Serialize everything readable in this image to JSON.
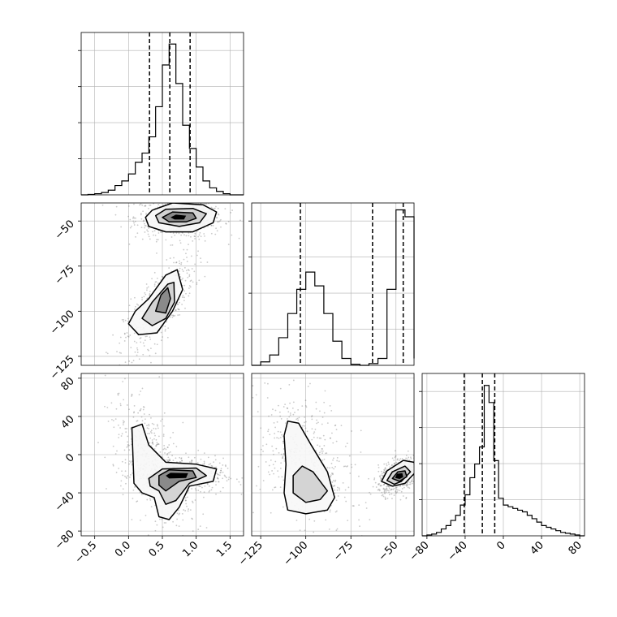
{
  "chart_data": {
    "type": "corner",
    "grid": true,
    "style": {
      "line_color": "#000000",
      "grid_color": "#b0b0b0",
      "point_color": "#666666",
      "fill_levels": [
        "#f7f7f7",
        "#d4d4d4",
        "#8a8a8a",
        "#000000"
      ]
    },
    "parameters": [
      {
        "range": [
          -0.7,
          1.7
        ],
        "ticks": [
          -0.5,
          0.0,
          0.5,
          1.0,
          1.5
        ],
        "tick_labels": [
          "−0.5",
          "0.0",
          "0.5",
          "1.0",
          "1.5"
        ]
      },
      {
        "range": [
          -130,
          -40
        ],
        "ticks": [
          -125,
          -100,
          -75,
          -50
        ],
        "tick_labels": [
          "−125",
          "−100",
          "−75",
          "−50"
        ]
      },
      {
        "range": [
          -85,
          85
        ],
        "ticks": [
          -80,
          -40,
          0,
          40,
          80
        ],
        "tick_labels": [
          "−80",
          "−40",
          "0",
          "40",
          "80"
        ]
      }
    ],
    "histograms": [
      {
        "edges": [
          -0.7,
          -0.6,
          -0.5,
          -0.4,
          -0.3,
          -0.2,
          -0.1,
          0.0,
          0.1,
          0.2,
          0.3,
          0.4,
          0.5,
          0.6,
          0.7,
          0.8,
          0.9,
          1.0,
          1.1,
          1.2,
          1.3,
          1.4,
          1.5,
          1.6,
          1.7
        ],
        "counts": [
          0,
          0.2,
          0.5,
          1,
          2,
          4,
          6,
          9,
          14,
          18,
          25,
          38,
          56,
          65,
          48,
          30,
          20,
          12,
          6,
          3,
          1.5,
          0.5,
          0,
          0
        ],
        "ymax": 70,
        "quantiles": [
          0.31,
          0.61,
          0.91
        ]
      },
      {
        "edges": [
          -130,
          -125,
          -120,
          -115,
          -110,
          -105,
          -100,
          -95,
          -90,
          -85,
          -80,
          -75,
          -70,
          -65,
          -60,
          -55,
          -50,
          -45,
          -40
        ],
        "counts": [
          0,
          1,
          3,
          8,
          15,
          22,
          27,
          23,
          15,
          7,
          2,
          0.3,
          0,
          0.5,
          2,
          22,
          45,
          43,
          2
        ],
        "ymax": 47,
        "quantiles": [
          -103,
          -63,
          -46
        ]
      },
      {
        "edges": [
          -85,
          -80,
          -75,
          -70,
          -65,
          -60,
          -55,
          -50,
          -45,
          -40,
          -35,
          -30,
          -25,
          -20,
          -15,
          -10,
          -5,
          0,
          5,
          10,
          15,
          20,
          25,
          30,
          35,
          40,
          45,
          50,
          55,
          60,
          65,
          70,
          75,
          80,
          85
        ],
        "counts": [
          0,
          0.5,
          1,
          2,
          4,
          6,
          9,
          12,
          18,
          24,
          34,
          42,
          52,
          88,
          78,
          44,
          22,
          18,
          17,
          16,
          15,
          14,
          12,
          10,
          8,
          6,
          5,
          4,
          3,
          2,
          1.5,
          1,
          0.5,
          0
        ],
        "ymax": 95,
        "quantiles": [
          -41,
          -22,
          -9
        ]
      }
    ],
    "pairs": [
      {
        "x_param": 0,
        "y_param": 1,
        "clusters": [
          {
            "center": [
              0.75,
              -48
            ],
            "sd": [
              0.25,
              4.5
            ],
            "rho": 0,
            "n": 650
          },
          {
            "center": [
              0.45,
              -97
            ],
            "sd": [
              0.2,
              10
            ],
            "rho": 0.75,
            "n": 520
          }
        ],
        "contours": [
          {
            "level": 1,
            "rings": [
              [
                [
                  0.25,
                  -48
                ],
                [
                  0.35,
                  -44
                ],
                [
                  0.65,
                  -40
                ],
                [
                  1.1,
                  -41
                ],
                [
                  1.3,
                  -45
                ],
                [
                  1.25,
                  -51
                ],
                [
                  0.95,
                  -56
                ],
                [
                  0.55,
                  -56
                ],
                [
                  0.3,
                  -53
                ]
              ],
              [
                [
                  0.0,
                  -107
                ],
                [
                  0.1,
                  -100
                ],
                [
                  0.3,
                  -93
                ],
                [
                  0.55,
                  -80
                ],
                [
                  0.72,
                  -77
                ],
                [
                  0.8,
                  -88
                ],
                [
                  0.65,
                  -100
                ],
                [
                  0.42,
                  -112
                ],
                [
                  0.15,
                  -113
                ]
              ]
            ]
          },
          {
            "level": 2,
            "rings": [
              [
                [
                  0.4,
                  -47
                ],
                [
                  0.55,
                  -43.5
                ],
                [
                  0.95,
                  -43
                ],
                [
                  1.15,
                  -46
                ],
                [
                  1.05,
                  -51
                ],
                [
                  0.75,
                  -53
                ],
                [
                  0.45,
                  -51
                ]
              ],
              [
                [
                  0.2,
                  -104
                ],
                [
                  0.35,
                  -95
                ],
                [
                  0.58,
                  -85
                ],
                [
                  0.67,
                  -84
                ],
                [
                  0.68,
                  -95
                ],
                [
                  0.55,
                  -104
                ],
                [
                  0.35,
                  -108
                ]
              ]
            ]
          },
          {
            "level": 3,
            "rings": [
              [
                [
                  0.5,
                  -48
                ],
                [
                  0.65,
                  -45
                ],
                [
                  0.95,
                  -45.5
                ],
                [
                  1.0,
                  -48.5
                ],
                [
                  0.85,
                  -50.5
                ],
                [
                  0.6,
                  -50.5
                ]
              ],
              [
                [
                  0.4,
                  -100
                ],
                [
                  0.48,
                  -91
                ],
                [
                  0.58,
                  -87
                ],
                [
                  0.62,
                  -93
                ],
                [
                  0.55,
                  -101
                ]
              ]
            ]
          },
          {
            "level": 4,
            "rings": [
              [
                [
                  0.62,
                  -48
                ],
                [
                  0.7,
                  -46.5
                ],
                [
                  0.85,
                  -47
                ],
                [
                  0.82,
                  -49.2
                ],
                [
                  0.68,
                  -49.2
                ]
              ]
            ]
          }
        ]
      },
      {
        "x_param": 0,
        "y_param": 2,
        "clusters": [
          {
            "center": [
              0.75,
              -22
            ],
            "sd": [
              0.25,
              7
            ],
            "rho": 0,
            "n": 650
          },
          {
            "center": [
              0.35,
              -8
            ],
            "sd": [
              0.22,
              26
            ],
            "rho": -0.6,
            "n": 520
          }
        ],
        "contours": [
          {
            "level": 1,
            "rings": [
              [
                [
                  0.08,
                  -30
                ],
                [
                  0.05,
                  28
                ],
                [
                  0.2,
                  32
                ],
                [
                  0.3,
                  10
                ],
                [
                  0.55,
                  -8
                ],
                [
                  1.0,
                  -10
                ],
                [
                  1.3,
                  -15
                ],
                [
                  1.25,
                  -28
                ],
                [
                  0.9,
                  -33
                ],
                [
                  0.75,
                  -55
                ],
                [
                  0.6,
                  -68
                ],
                [
                  0.45,
                  -65
                ],
                [
                  0.38,
                  -45
                ],
                [
                  0.2,
                  -40
                ]
              ]
            ]
          },
          {
            "level": 2,
            "rings": [
              [
                [
                  0.3,
                  -25
                ],
                [
                  0.5,
                  -15
                ],
                [
                  1.0,
                  -14
                ],
                [
                  1.15,
                  -22
                ],
                [
                  0.9,
                  -30
                ],
                [
                  0.7,
                  -48
                ],
                [
                  0.55,
                  -52
                ],
                [
                  0.45,
                  -38
                ],
                [
                  0.32,
                  -33
                ]
              ]
            ]
          },
          {
            "level": 3,
            "rings": [
              [
                [
                  0.45,
                  -22
                ],
                [
                  0.6,
                  -16
                ],
                [
                  0.95,
                  -17
                ],
                [
                  1.0,
                  -24
                ],
                [
                  0.75,
                  -28
                ],
                [
                  0.55,
                  -38
                ],
                [
                  0.45,
                  -32
                ]
              ]
            ]
          },
          {
            "level": 4,
            "rings": [
              [
                [
                  0.55,
                  -22
                ],
                [
                  0.62,
                  -19
                ],
                [
                  0.88,
                  -19.5
                ],
                [
                  0.85,
                  -24.5
                ],
                [
                  0.6,
                  -25
                ]
              ]
            ]
          }
        ]
      },
      {
        "x_param": 1,
        "y_param": 2,
        "clusters": [
          {
            "center": [
              -48,
              -22
            ],
            "sd": [
              4.5,
              7
            ],
            "rho": 0.4,
            "n": 650
          },
          {
            "center": [
              -100,
              -8
            ],
            "sd": [
              10,
              26
            ],
            "rho": -0.4,
            "n": 520
          }
        ],
        "contours": [
          {
            "level": 1,
            "rings": [
              [
                [
                  -58,
                  -28
                ],
                [
                  -55,
                  -17
                ],
                [
                  -46,
                  -6
                ],
                [
                  -40,
                  -8
                ],
                [
                  -39,
                  -18
                ],
                [
                  -45,
                  -30
                ],
                [
                  -52,
                  -33
                ]
              ],
              [
                [
                  -112,
                  -40
                ],
                [
                  -111,
                  -10
                ],
                [
                  -112,
                  20
                ],
                [
                  -110,
                  35
                ],
                [
                  -104,
                  33
                ],
                [
                  -97,
                  10
                ],
                [
                  -88,
                  -18
                ],
                [
                  -84,
                  -45
                ],
                [
                  -88,
                  -58
                ],
                [
                  -100,
                  -62
                ],
                [
                  -110,
                  -58
                ]
              ]
            ]
          },
          {
            "level": 2,
            "rings": [
              [
                [
                  -55,
                  -27
                ],
                [
                  -52,
                  -18
                ],
                [
                  -45,
                  -12
                ],
                [
                  -42,
                  -18
                ],
                [
                  -47,
                  -28
                ],
                [
                  -51,
                  -31
                ]
              ],
              [
                [
                  -107,
                  -40
                ],
                [
                  -107,
                  -22
                ],
                [
                  -102,
                  -12
                ],
                [
                  -96,
                  -18
                ],
                [
                  -88,
                  -38
                ],
                [
                  -92,
                  -47
                ],
                [
                  -100,
                  -50
                ]
              ]
            ]
          },
          {
            "level": 3,
            "rings": [
              [
                [
                  -52,
                  -25
                ],
                [
                  -49,
                  -18
                ],
                [
                  -45,
                  -17
                ],
                [
                  -44,
                  -23
                ],
                [
                  -48,
                  -28
                ]
              ]
            ]
          },
          {
            "level": 4,
            "rings": [
              [
                [
                  -50.5,
                  -24.5
                ],
                [
                  -49.5,
                  -20
                ],
                [
                  -46.5,
                  -19.5
                ],
                [
                  -46,
                  -23.5
                ],
                [
                  -48,
                  -25.5
                ]
              ]
            ]
          }
        ]
      }
    ]
  }
}
